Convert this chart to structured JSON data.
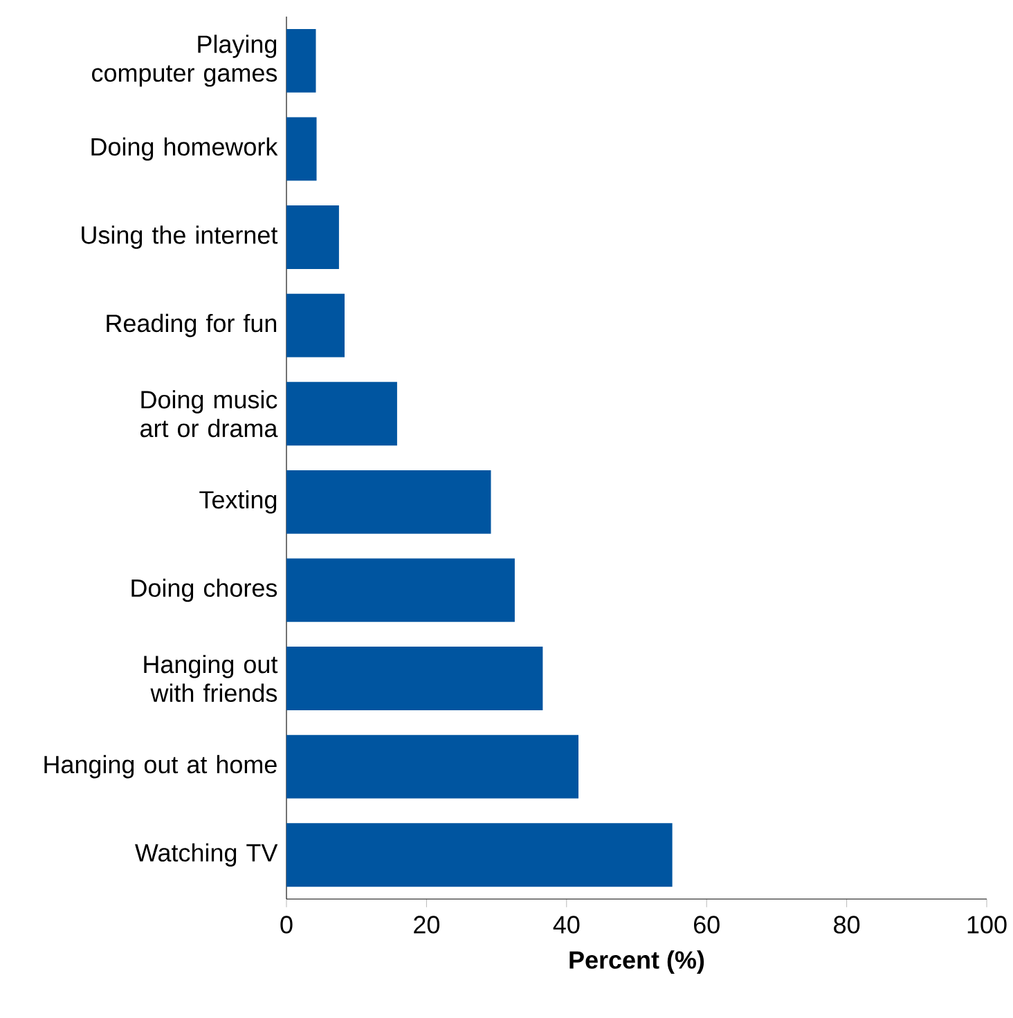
{
  "chart_data": {
    "type": "bar",
    "orientation": "horizontal",
    "xlabel": "Percent (%)",
    "categories": [
      "Playing computer games",
      "Doing homework",
      "Using the internet",
      "Reading for fun",
      "Doing music art or drama",
      "Texting",
      "Doing chores",
      "Hanging out with friends",
      "Hanging out at home",
      "Watching TV"
    ],
    "values": [
      4.2,
      4.3,
      7.5,
      8.3,
      15.8,
      29.2,
      32.6,
      36.6,
      41.7,
      55.1
    ],
    "color": "#0055a0",
    "xlim": [
      0,
      100
    ],
    "xticks": [
      0,
      20,
      40,
      60,
      80,
      100
    ]
  }
}
